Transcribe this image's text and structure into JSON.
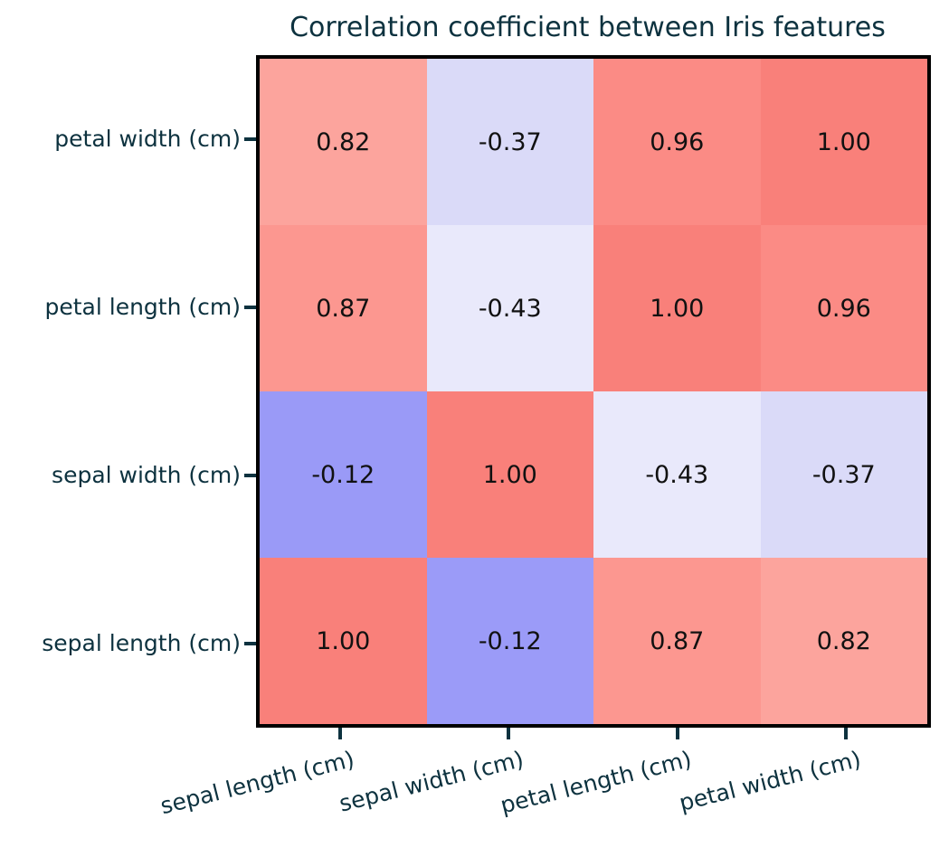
{
  "chart_data": {
    "type": "heatmap",
    "title": "Correlation coefficient between Iris features",
    "x_categories": [
      "sepal length (cm)",
      "sepal width (cm)",
      "petal length (cm)",
      "petal width (cm)"
    ],
    "y_categories": [
      "petal width (cm)",
      "petal length (cm)",
      "sepal width (cm)",
      "sepal length (cm)"
    ],
    "y_order": "top-to-bottom",
    "values": [
      [
        0.82,
        -0.37,
        0.96,
        1.0
      ],
      [
        0.87,
        -0.43,
        1.0,
        0.96
      ],
      [
        -0.12,
        1.0,
        -0.43,
        -0.37
      ],
      [
        1.0,
        -0.12,
        0.87,
        0.82
      ]
    ],
    "labels": [
      [
        "0.82",
        "-0.37",
        "0.96",
        "1.00"
      ],
      [
        "0.87",
        "-0.43",
        "1.00",
        "0.96"
      ],
      [
        "-0.12",
        "1.00",
        "-0.43",
        "-0.37"
      ],
      [
        "1.00",
        "-0.12",
        "0.87",
        "0.82"
      ]
    ],
    "cell_colors": [
      [
        "#fca49d",
        "#dadaf8",
        "#fb8b85",
        "#f9807a"
      ],
      [
        "#fc9790",
        "#e9e9fb",
        "#f9807a",
        "#fb8b85"
      ],
      [
        "#9a9af7",
        "#f9807a",
        "#e9e9fb",
        "#dadaf8"
      ],
      [
        "#f9807a",
        "#9b9bf8",
        "#fc9790",
        "#fca49d"
      ]
    ],
    "value_range": [
      -1,
      1
    ],
    "grid": false,
    "legend": "none",
    "annotation_color": "#111111",
    "axis_text_color": "#0d323f",
    "frame_color": "#000000",
    "background_color": "#ffffff"
  }
}
